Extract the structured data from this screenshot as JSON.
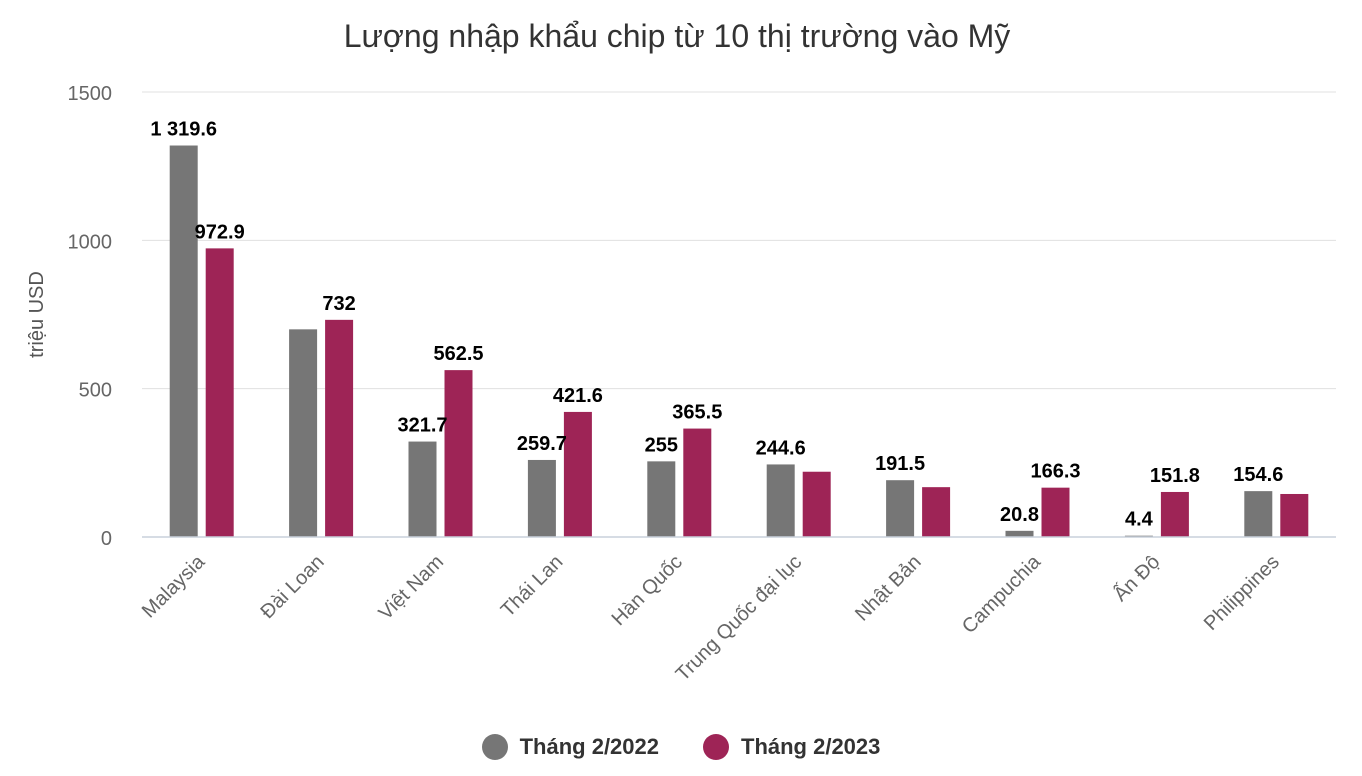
{
  "chart_data": {
    "type": "bar",
    "title": "Lượng nhập khẩu chip từ 10 thị trường vào Mỹ",
    "ylabel": "triệu USD",
    "xlabel": "",
    "ylim": [
      0,
      1500
    ],
    "yticks": [
      "0",
      "500",
      "1000",
      "1500"
    ],
    "grid": true,
    "legend_position": "bottom",
    "categories": [
      "Malaysia",
      "Đài Loan",
      "Việt Nam",
      "Thái Lan",
      "Hàn Quốc",
      "Trung Quốc đại lục",
      "Nhật Bản",
      "Campuchia",
      "Ấn Độ",
      "Philippines"
    ],
    "series": [
      {
        "name": "Tháng 2/2022",
        "color": "#767676",
        "values": [
          1319.6,
          700,
          321.7,
          259.7,
          255,
          244.6,
          191.5,
          20.8,
          4.4,
          154.6
        ],
        "labels": [
          "1 319.6",
          "",
          "321.7",
          "259.7",
          "255",
          "244.6",
          "191.5",
          "20.8",
          "4.4",
          "154.6"
        ]
      },
      {
        "name": "Tháng 2/2023",
        "color": "#9e2456",
        "values": [
          972.9,
          732,
          562.5,
          421.6,
          365.5,
          220,
          168,
          166.3,
          151.8,
          145
        ],
        "labels": [
          "972.9",
          "732",
          "562.5",
          "421.6",
          "365.5",
          "",
          "",
          "166.3",
          "151.8",
          ""
        ]
      }
    ]
  }
}
